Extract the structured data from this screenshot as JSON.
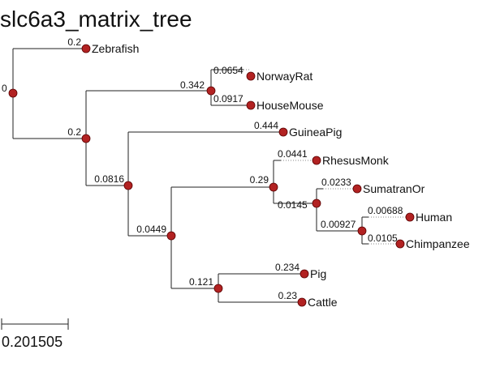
{
  "title": "slc6a3_matrix_tree",
  "scale_bar": {
    "label": "0.201505"
  },
  "node_color": "#b22222",
  "tree": {
    "root_length": "0",
    "nodes": [
      {
        "id": "zebrafish",
        "label": "Zebrafish",
        "length": "0.2"
      },
      {
        "id": "clade_a",
        "length": "0.2"
      },
      {
        "id": "clade_rodent",
        "length": "0.342"
      },
      {
        "id": "norway_rat",
        "label": "NorwayRat",
        "length": "0.0654"
      },
      {
        "id": "house_mouse",
        "label": "HouseMouse",
        "length": "0.0917"
      },
      {
        "id": "clade_b",
        "length": "0.0816"
      },
      {
        "id": "guinea_pig",
        "label": "GuineaPig",
        "length": "0.444"
      },
      {
        "id": "clade_c",
        "length": "0.0449"
      },
      {
        "id": "clade_primate",
        "length": "0.29"
      },
      {
        "id": "rhesus_monk",
        "label": "RhesusMonk",
        "length": "0.0441"
      },
      {
        "id": "clade_ape",
        "length": "0.0145"
      },
      {
        "id": "sumatran_or",
        "label": "SumatranOr",
        "length": "0.0233"
      },
      {
        "id": "clade_hc",
        "length": "0.00927"
      },
      {
        "id": "human",
        "label": "Human",
        "length": "0.00688"
      },
      {
        "id": "chimpanzee",
        "label": "Chimpanzee",
        "length": "0.0105"
      },
      {
        "id": "clade_ungulate",
        "length": "0.121"
      },
      {
        "id": "pig",
        "label": "Pig",
        "length": "0.234"
      },
      {
        "id": "cattle",
        "label": "Cattle",
        "length": "0.23"
      }
    ]
  }
}
